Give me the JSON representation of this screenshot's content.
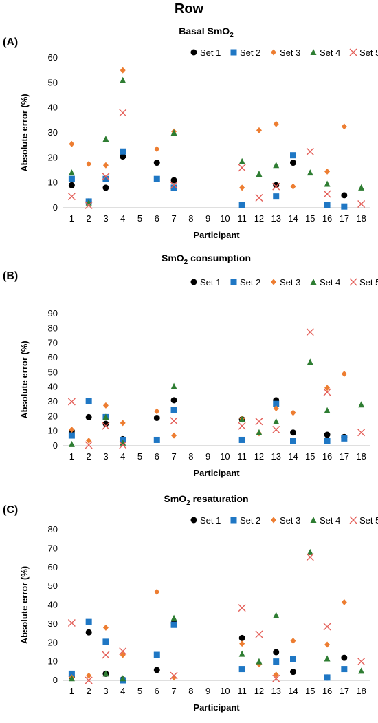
{
  "title": "Row",
  "legend": [
    {
      "name": "Set 1",
      "color": "#000000",
      "marker": "circle"
    },
    {
      "name": "Set 2",
      "color": "#1f77c4",
      "marker": "square"
    },
    {
      "name": "Set 3",
      "color": "#ed7d31",
      "marker": "diamond"
    },
    {
      "name": "Set 4",
      "color": "#2e7d32",
      "marker": "triangle"
    },
    {
      "name": "Set 5",
      "color": "#e4605a",
      "marker": "x"
    }
  ],
  "chart_data": [
    {
      "type": "scatter",
      "panel_label": "(A)",
      "title": "Basal SmO",
      "title_sub": "2",
      "xlabel": "Participant",
      "ylabel": "Absolute error (%)",
      "categories": [
        "1",
        "2",
        "3",
        "4",
        "5",
        "6",
        "7",
        "8",
        "9",
        "10",
        "11",
        "12",
        "13",
        "14",
        "15",
        "16",
        "17",
        "18"
      ],
      "ylim": [
        0,
        60
      ],
      "yticks": [
        0,
        10,
        20,
        30,
        40,
        50,
        60
      ],
      "legend_position": "top-right",
      "series": [
        {
          "name": "Set 1",
          "values": [
            9,
            2.5,
            8,
            20.5,
            null,
            18,
            11,
            null,
            null,
            null,
            null,
            null,
            9,
            18,
            null,
            1,
            5,
            null
          ]
        },
        {
          "name": "Set 2",
          "values": [
            11.5,
            2.5,
            11.5,
            22.5,
            null,
            11.5,
            8,
            null,
            null,
            null,
            1,
            null,
            4.5,
            21,
            null,
            1,
            0.5,
            null
          ]
        },
        {
          "name": "Set 3",
          "values": [
            25.5,
            17.5,
            17,
            55,
            null,
            23.5,
            30.5,
            null,
            null,
            null,
            8,
            31,
            33.5,
            8.5,
            null,
            14.5,
            32.5,
            null
          ]
        },
        {
          "name": "Set 4",
          "values": [
            14,
            2,
            27.5,
            51,
            null,
            null,
            30,
            null,
            null,
            null,
            18.5,
            13.5,
            17,
            null,
            14,
            9.5,
            null,
            8
          ]
        },
        {
          "name": "Set 5",
          "values": [
            4.5,
            1,
            12.5,
            38,
            null,
            null,
            9,
            null,
            null,
            null,
            16,
            4,
            8.5,
            null,
            22.5,
            5.5,
            null,
            1.5
          ]
        }
      ]
    },
    {
      "type": "scatter",
      "panel_label": "(B)",
      "title": "SmO",
      "title_sub": "2",
      "title_rest": " consumption",
      "xlabel": "Participant",
      "ylabel": "Absolute error (%)",
      "categories": [
        "1",
        "2",
        "3",
        "4",
        "5",
        "6",
        "7",
        "8",
        "9",
        "10",
        "11",
        "12",
        "13",
        "14",
        "15",
        "16",
        "17",
        "18"
      ],
      "ylim": [
        0,
        90
      ],
      "yticks": [
        0,
        10,
        20,
        30,
        40,
        50,
        60,
        70,
        80,
        90
      ],
      "legend_position": "top-right",
      "series": [
        {
          "name": "Set 1",
          "values": [
            10,
            19.5,
            15,
            4.5,
            null,
            19,
            31,
            null,
            null,
            null,
            18,
            null,
            31,
            9,
            null,
            7.5,
            6,
            null
          ]
        },
        {
          "name": "Set 2",
          "values": [
            7,
            30.5,
            19.5,
            4,
            null,
            4,
            24.5,
            null,
            null,
            null,
            4,
            null,
            28.5,
            3.5,
            null,
            3.5,
            5,
            null
          ]
        },
        {
          "name": "Set 3",
          "values": [
            11,
            3.5,
            27.5,
            15.5,
            null,
            23.5,
            7,
            null,
            null,
            null,
            18.5,
            8.5,
            25.5,
            22.5,
            null,
            39.5,
            49,
            null
          ]
        },
        {
          "name": "Set 4",
          "values": [
            1,
            null,
            19.5,
            2,
            null,
            null,
            40.5,
            null,
            null,
            null,
            18,
            9,
            16.5,
            null,
            57,
            24,
            null,
            28
          ]
        },
        {
          "name": "Set 5",
          "values": [
            30,
            0.5,
            13.5,
            0.5,
            null,
            null,
            17,
            null,
            null,
            null,
            13.5,
            16.5,
            11,
            null,
            77.5,
            36.5,
            null,
            9
          ]
        }
      ]
    },
    {
      "type": "scatter",
      "panel_label": "(C)",
      "title": "SmO",
      "title_sub": "2",
      "title_rest": " resaturation",
      "xlabel": "Participant",
      "ylabel": "Absolute error (%)",
      "categories": [
        "1",
        "2",
        "3",
        "4",
        "5",
        "6",
        "7",
        "8",
        "9",
        "10",
        "11",
        "12",
        "13",
        "14",
        "15",
        "16",
        "17",
        "18"
      ],
      "ylim": [
        0,
        80
      ],
      "yticks": [
        0,
        10,
        20,
        30,
        40,
        50,
        60,
        70,
        80
      ],
      "legend_position": "top-right",
      "series": [
        {
          "name": "Set 1",
          "values": [
            2,
            25.5,
            3.5,
            0.5,
            null,
            5.5,
            30.5,
            null,
            null,
            null,
            22.5,
            null,
            15,
            4.5,
            null,
            1.5,
            12,
            null
          ]
        },
        {
          "name": "Set 2",
          "values": [
            3.5,
            31,
            20.5,
            0,
            null,
            13.5,
            29.5,
            null,
            null,
            null,
            6,
            null,
            10,
            11.5,
            null,
            1.5,
            6,
            null
          ]
        },
        {
          "name": "Set 3",
          "values": [
            1.5,
            2.5,
            28,
            13.5,
            null,
            47,
            1.5,
            null,
            null,
            null,
            19.5,
            8.5,
            3,
            21,
            null,
            19,
            41.5,
            null
          ]
        },
        {
          "name": "Set 4",
          "values": [
            1,
            null,
            3.5,
            1,
            null,
            null,
            33,
            null,
            null,
            null,
            14,
            10,
            34.5,
            null,
            68,
            11.5,
            null,
            5
          ]
        },
        {
          "name": "Set 5",
          "values": [
            30.5,
            0,
            13.5,
            15.5,
            null,
            null,
            2.5,
            null,
            null,
            null,
            38.5,
            24.5,
            1,
            null,
            65.5,
            28.5,
            null,
            10
          ]
        }
      ]
    }
  ]
}
